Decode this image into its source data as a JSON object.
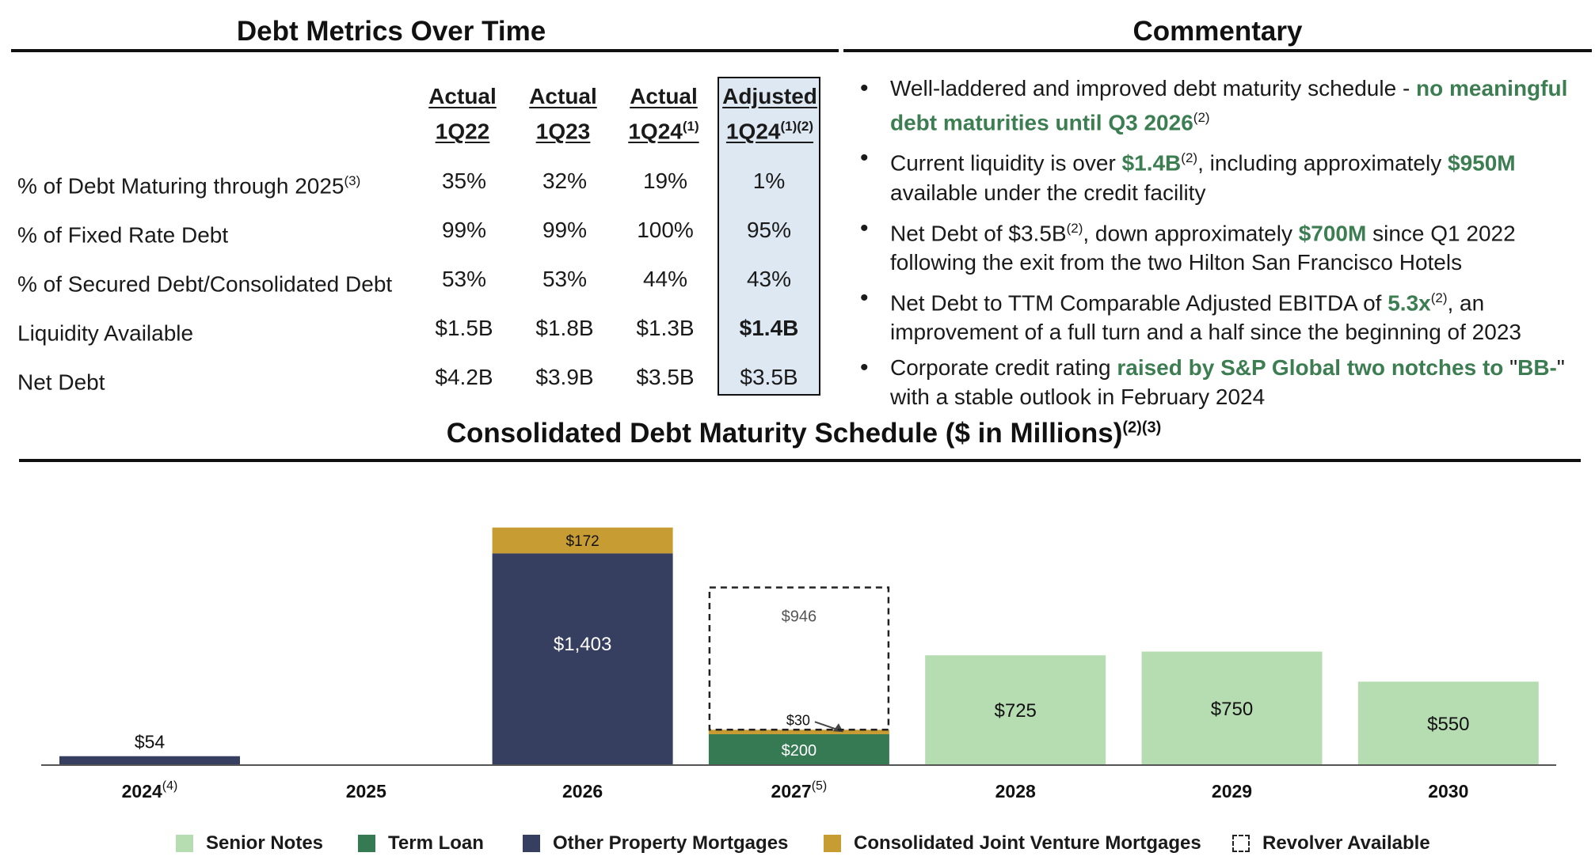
{
  "left_title": "Debt Metrics Over Time",
  "right_title": "Commentary",
  "chart_title": "Consolidated Debt Maturity Schedule ($ in Millions)",
  "chart_title_sup": "(2)(3)",
  "metrics": {
    "columns": [
      {
        "line1": "Actual",
        "line2": "1Q22",
        "sup": ""
      },
      {
        "line1": "Actual",
        "line2": "1Q23",
        "sup": ""
      },
      {
        "line1": "Actual",
        "line2": "1Q24",
        "sup": "(1)"
      },
      {
        "line1": "Adjusted",
        "line2": "1Q24",
        "sup": "(1)(2)"
      }
    ],
    "rows": [
      {
        "label": "% of Debt Maturing through 2025",
        "sup": "(3)",
        "values": [
          "35%",
          "32%",
          "19%",
          "1%"
        ]
      },
      {
        "label": "% of Fixed Rate Debt",
        "sup": "",
        "values": [
          "99%",
          "99%",
          "100%",
          "95%"
        ]
      },
      {
        "label": "% of Secured Debt/Consolidated Debt",
        "sup": "",
        "values": [
          "53%",
          "53%",
          "44%",
          "43%"
        ]
      },
      {
        "label": "Liquidity Available",
        "sup": "",
        "values": [
          "$1.5B",
          "$1.8B",
          "$1.3B",
          "$1.4B"
        ]
      },
      {
        "label": "Net Debt",
        "sup": "",
        "values": [
          "$4.2B",
          "$3.9B",
          "$3.5B",
          "$3.5B"
        ]
      }
    ]
  },
  "commentary": {
    "b1": {
      "t1": "Well-laddered and improved debt maturity schedule - ",
      "h1": "no meaningful debt maturities until Q3 2026",
      "s1": "(2)"
    },
    "b2": {
      "t1": "Current liquidity is over ",
      "h1": "$1.4B",
      "s1": "(2)",
      "t2": ", including approximately ",
      "h2": "$950M",
      "t3": " available under the credit facility"
    },
    "b3": {
      "t1": "Net Debt of $3.5B",
      "s1": "(2)",
      "t2": ", down approximately ",
      "h1": "$700M",
      "t3": " since Q1 2022 following the exit from the two Hilton San Francisco Hotels"
    },
    "b4": {
      "t1": "Net Debt to TTM Comparable Adjusted EBITDA of ",
      "h1": "5.3x",
      "s1": "(2)",
      "t2": ", an improvement of a full turn and a half since the beginning of 2023"
    },
    "b5": {
      "t1": "Corporate credit rating ",
      "h1": "raised by S&P Global two notches to",
      "t2": " \"",
      "h2": "BB-",
      "t3": "\" with a stable outlook in February 2024"
    }
  },
  "colors": {
    "senior_notes": "#b6dcb2",
    "term_loan": "#357a52",
    "other_property": "#363f60",
    "jv_mortgages": "#c79c33",
    "revolver_border": "#222222",
    "highlight_text": "#3c7d52",
    "adjusted_fill": "#dde8f3"
  },
  "chart_data": {
    "type": "bar",
    "stacked": true,
    "categories": [
      "2024",
      "2025",
      "2026",
      "2027",
      "2028",
      "2029",
      "2030"
    ],
    "category_sup": [
      "(4)",
      "",
      "",
      "(5)",
      "",
      "",
      ""
    ],
    "series": [
      {
        "name": "Senior Notes",
        "key": "senior_notes",
        "values": [
          0,
          0,
          0,
          0,
          725,
          750,
          550
        ],
        "labels": [
          "",
          "",
          "",
          "",
          "$725",
          "$750",
          "$550"
        ]
      },
      {
        "name": "Term Loan",
        "key": "term_loan",
        "values": [
          0,
          0,
          0,
          200,
          0,
          0,
          0
        ],
        "labels": [
          "",
          "",
          "",
          "$200",
          "",
          "",
          ""
        ]
      },
      {
        "name": "Other Property Mortgages",
        "key": "other_property",
        "values": [
          54,
          0,
          1403,
          0,
          0,
          0,
          0
        ],
        "labels": [
          "$54",
          "",
          "$1,403",
          "",
          "",
          "",
          ""
        ]
      },
      {
        "name": "Consolidated Joint Venture Mortgages",
        "key": "jv_mortgages",
        "values": [
          0,
          0,
          172,
          30,
          0,
          0,
          0
        ],
        "labels": [
          "",
          "",
          "$172",
          "$30",
          "",
          "",
          ""
        ]
      },
      {
        "name": "Revolver Available",
        "key": "revolver",
        "values": [
          0,
          0,
          0,
          946,
          0,
          0,
          0
        ],
        "labels": [
          "",
          "",
          "",
          "$946",
          "",
          "",
          ""
        ]
      }
    ],
    "ylim": [
      0,
      1600
    ],
    "grid": false,
    "legend_position": "bottom"
  }
}
